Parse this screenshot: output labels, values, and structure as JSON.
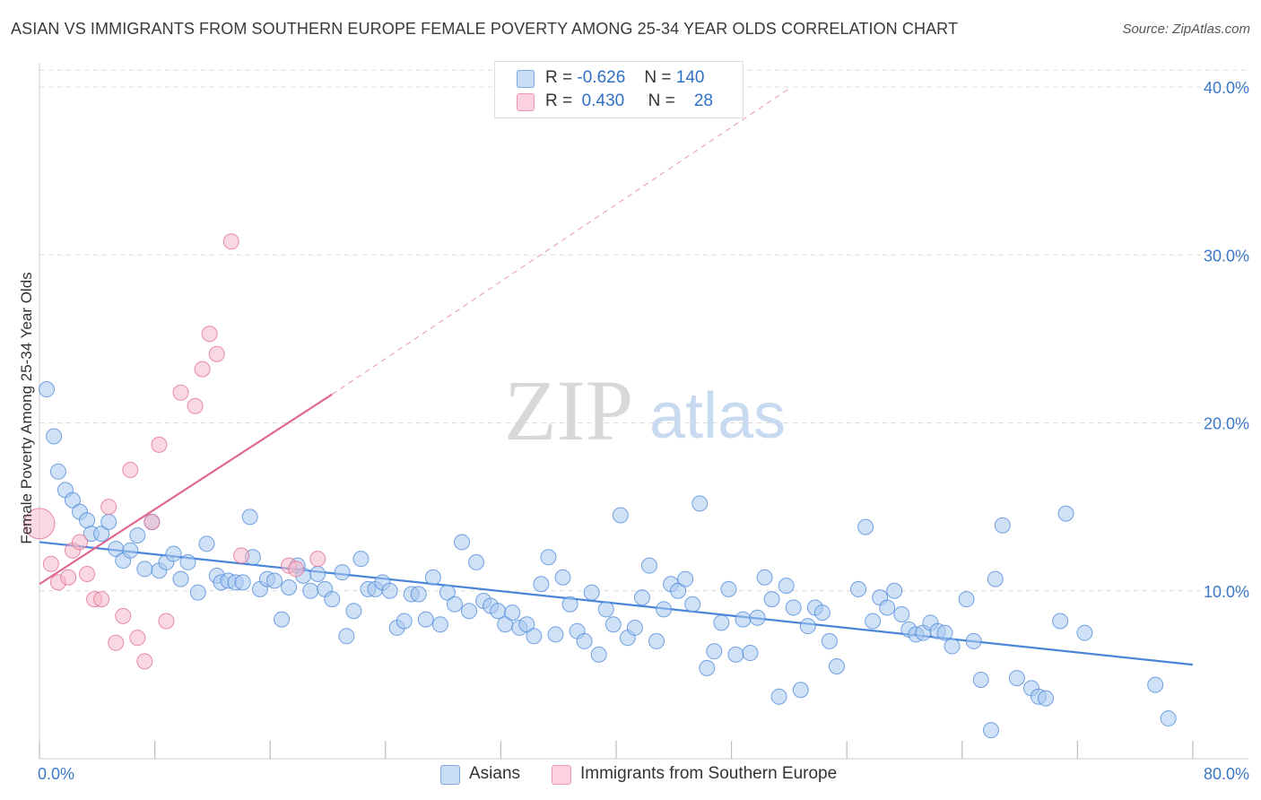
{
  "header": {
    "title": "ASIAN VS IMMIGRANTS FROM SOUTHERN EUROPE FEMALE POVERTY AMONG 25-34 YEAR OLDS CORRELATION CHART",
    "source": "Source: ZipAtlas.com"
  },
  "watermark": {
    "zip": "ZIP",
    "atlas": "atlas"
  },
  "legend": {
    "rows": [
      {
        "r_label": "R =",
        "r_value": "-0.626",
        "n_label": "N =",
        "n_value": "140",
        "color": "#a8c8f0"
      },
      {
        "r_label": "R =",
        "r_value": "0.430",
        "n_label": "N =",
        "n_value": "28",
        "color": "#f6b8c8"
      }
    ]
  },
  "bottom_legend": {
    "items": [
      {
        "label": "Asians",
        "color": "#a8c8f0"
      },
      {
        "label": "Immigrants from Southern Europe",
        "color": "#f6b8c8"
      }
    ]
  },
  "chart_data": {
    "type": "scatter",
    "title": "ASIAN VS IMMIGRANTS FROM SOUTHERN EUROPE FEMALE POVERTY AMONG 25-34 YEAR OLDS CORRELATION CHART",
    "xlabel": "",
    "ylabel": "Female Poverty Among 25-34 Year Olds",
    "xlim": [
      0,
      80
    ],
    "ylim": [
      0,
      41
    ],
    "x_tick_labels": [
      "0.0%",
      "80.0%"
    ],
    "y_ticks": [
      10,
      20,
      30,
      40
    ],
    "y_tick_labels": [
      "10.0%",
      "20.0%",
      "30.0%",
      "40.0%"
    ],
    "grid": true,
    "legend_position": "top-center",
    "series": [
      {
        "name": "Asians",
        "color": "#4a86d8",
        "fill": "#a8c8f0",
        "trend": {
          "x": [
            0,
            80
          ],
          "y": [
            12.9,
            5.6
          ],
          "style": "solid"
        },
        "points": [
          [
            0.5,
            22.0
          ],
          [
            1.0,
            19.2
          ],
          [
            1.3,
            17.1
          ],
          [
            1.8,
            16.0
          ],
          [
            2.3,
            15.4
          ],
          [
            2.8,
            14.7
          ],
          [
            3.3,
            14.2
          ],
          [
            3.6,
            13.4
          ],
          [
            4.3,
            13.4
          ],
          [
            4.8,
            14.1
          ],
          [
            5.3,
            12.5
          ],
          [
            5.8,
            11.8
          ],
          [
            6.3,
            12.4
          ],
          [
            6.8,
            13.3
          ],
          [
            7.3,
            11.3
          ],
          [
            7.8,
            14.1
          ],
          [
            8.3,
            11.2
          ],
          [
            8.8,
            11.7
          ],
          [
            9.3,
            12.2
          ],
          [
            9.8,
            10.7
          ],
          [
            10.3,
            11.7
          ],
          [
            11.0,
            9.9
          ],
          [
            11.6,
            12.8
          ],
          [
            12.3,
            10.9
          ],
          [
            12.6,
            10.5
          ],
          [
            13.1,
            10.6
          ],
          [
            13.6,
            10.5
          ],
          [
            14.1,
            10.5
          ],
          [
            14.6,
            14.4
          ],
          [
            14.8,
            12.0
          ],
          [
            15.3,
            10.1
          ],
          [
            15.8,
            10.7
          ],
          [
            16.3,
            10.6
          ],
          [
            16.8,
            8.3
          ],
          [
            17.3,
            10.2
          ],
          [
            17.9,
            11.5
          ],
          [
            18.3,
            10.9
          ],
          [
            18.8,
            10.0
          ],
          [
            19.3,
            11.0
          ],
          [
            19.8,
            10.1
          ],
          [
            20.3,
            9.5
          ],
          [
            21.0,
            11.1
          ],
          [
            21.3,
            7.3
          ],
          [
            21.8,
            8.8
          ],
          [
            22.3,
            11.9
          ],
          [
            22.8,
            10.1
          ],
          [
            23.3,
            10.1
          ],
          [
            23.8,
            10.5
          ],
          [
            24.3,
            10.0
          ],
          [
            24.8,
            7.8
          ],
          [
            25.3,
            8.2
          ],
          [
            25.8,
            9.8
          ],
          [
            26.3,
            9.8
          ],
          [
            26.8,
            8.3
          ],
          [
            27.3,
            10.8
          ],
          [
            27.8,
            8.0
          ],
          [
            28.3,
            9.9
          ],
          [
            28.8,
            9.2
          ],
          [
            29.3,
            12.9
          ],
          [
            29.8,
            8.8
          ],
          [
            30.3,
            11.7
          ],
          [
            30.8,
            9.4
          ],
          [
            31.3,
            9.1
          ],
          [
            31.8,
            8.8
          ],
          [
            32.3,
            8.0
          ],
          [
            32.8,
            8.7
          ],
          [
            33.3,
            7.8
          ],
          [
            33.8,
            8.0
          ],
          [
            34.3,
            7.3
          ],
          [
            34.8,
            10.4
          ],
          [
            35.3,
            12.0
          ],
          [
            35.8,
            7.4
          ],
          [
            36.3,
            10.8
          ],
          [
            36.8,
            9.2
          ],
          [
            37.3,
            7.6
          ],
          [
            37.8,
            7.0
          ],
          [
            38.3,
            9.9
          ],
          [
            38.8,
            6.2
          ],
          [
            39.3,
            8.9
          ],
          [
            39.8,
            8.0
          ],
          [
            40.3,
            14.5
          ],
          [
            40.8,
            7.2
          ],
          [
            41.3,
            7.8
          ],
          [
            41.8,
            9.6
          ],
          [
            42.3,
            11.5
          ],
          [
            42.8,
            7.0
          ],
          [
            43.3,
            8.9
          ],
          [
            43.8,
            10.4
          ],
          [
            44.3,
            10.0
          ],
          [
            44.8,
            10.7
          ],
          [
            45.3,
            9.2
          ],
          [
            45.8,
            15.2
          ],
          [
            46.3,
            5.4
          ],
          [
            46.8,
            6.4
          ],
          [
            47.3,
            8.1
          ],
          [
            47.8,
            10.1
          ],
          [
            48.3,
            6.2
          ],
          [
            48.8,
            8.3
          ],
          [
            49.3,
            6.3
          ],
          [
            49.8,
            8.4
          ],
          [
            50.3,
            10.8
          ],
          [
            50.8,
            9.5
          ],
          [
            51.3,
            3.7
          ],
          [
            51.8,
            10.3
          ],
          [
            52.3,
            9.0
          ],
          [
            52.8,
            4.1
          ],
          [
            53.3,
            7.9
          ],
          [
            53.8,
            9.0
          ],
          [
            54.3,
            8.7
          ],
          [
            54.8,
            7.0
          ],
          [
            55.3,
            5.5
          ],
          [
            56.8,
            10.1
          ],
          [
            57.3,
            13.8
          ],
          [
            57.8,
            8.2
          ],
          [
            58.3,
            9.6
          ],
          [
            58.8,
            9.0
          ],
          [
            59.3,
            10.0
          ],
          [
            59.8,
            8.6
          ],
          [
            60.3,
            7.7
          ],
          [
            60.8,
            7.4
          ],
          [
            61.3,
            7.5
          ],
          [
            61.8,
            8.1
          ],
          [
            62.3,
            7.6
          ],
          [
            62.8,
            7.5
          ],
          [
            63.3,
            6.7
          ],
          [
            64.3,
            9.5
          ],
          [
            64.8,
            7.0
          ],
          [
            65.3,
            4.7
          ],
          [
            66.0,
            1.7
          ],
          [
            66.3,
            10.7
          ],
          [
            66.8,
            13.9
          ],
          [
            67.8,
            4.8
          ],
          [
            68.8,
            4.2
          ],
          [
            69.3,
            3.7
          ],
          [
            69.8,
            3.6
          ],
          [
            70.8,
            8.2
          ],
          [
            71.2,
            14.6
          ],
          [
            72.5,
            7.5
          ],
          [
            77.4,
            4.4
          ],
          [
            78.3,
            2.4
          ]
        ]
      },
      {
        "name": "Immigrants from Southern Europe",
        "color": "#e06890",
        "fill": "#f6b8c8",
        "trend": {
          "x": [
            0,
            20.3
          ],
          "y": [
            10.4,
            21.7
          ],
          "style": "solid",
          "extended": {
            "x": [
              20.3,
              52
            ],
            "y": [
              21.7,
              39.9
            ],
            "style": "dashed"
          }
        },
        "points": [
          [
            0.0,
            14.0
          ],
          [
            0.8,
            11.6
          ],
          [
            1.3,
            10.5
          ],
          [
            2.0,
            10.8
          ],
          [
            2.3,
            12.4
          ],
          [
            2.8,
            12.9
          ],
          [
            3.3,
            11.0
          ],
          [
            3.8,
            9.5
          ],
          [
            4.3,
            9.5
          ],
          [
            4.8,
            15.0
          ],
          [
            5.3,
            6.9
          ],
          [
            5.8,
            8.5
          ],
          [
            6.3,
            17.2
          ],
          [
            6.8,
            7.2
          ],
          [
            7.3,
            5.8
          ],
          [
            7.8,
            14.1
          ],
          [
            8.3,
            18.7
          ],
          [
            8.8,
            8.2
          ],
          [
            9.8,
            21.8
          ],
          [
            10.8,
            21.0
          ],
          [
            11.3,
            23.2
          ],
          [
            11.8,
            25.3
          ],
          [
            12.3,
            24.1
          ],
          [
            13.3,
            30.8
          ],
          [
            14.0,
            12.1
          ],
          [
            17.3,
            11.5
          ],
          [
            17.8,
            11.3
          ],
          [
            19.3,
            11.9
          ]
        ]
      }
    ]
  }
}
